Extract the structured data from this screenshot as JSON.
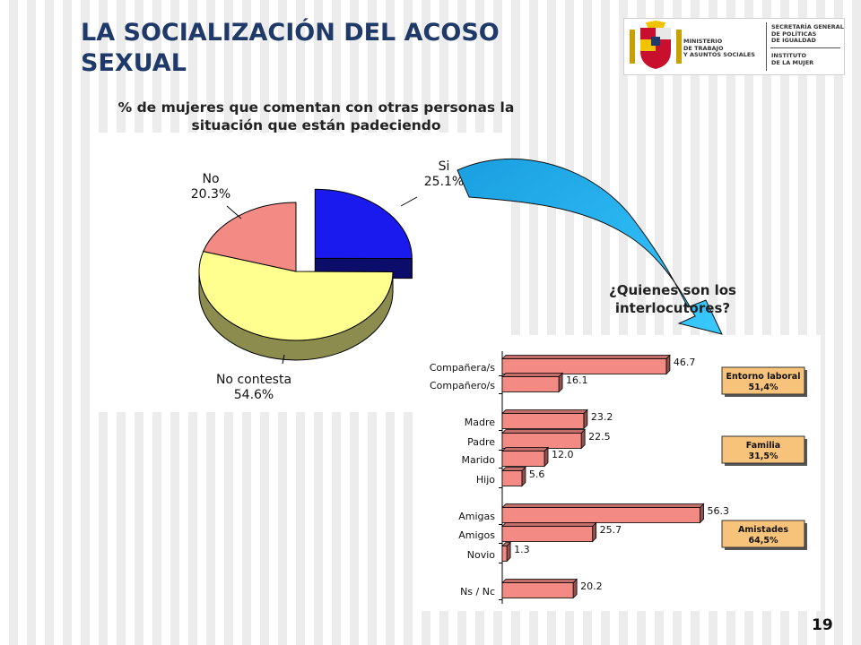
{
  "title": "LA SOCIALIZACIÓN DEL ACOSO SEXUAL",
  "logo": {
    "ministry_lines": [
      "MINISTERIO",
      "DE TRABAJO",
      "Y ASUNTOS SOCIALES"
    ],
    "secretariat_lines": [
      "SECRETARÍA GENERAL",
      "DE POLÍTICAS",
      "DE IGUALDAD"
    ],
    "institute_lines": [
      "INSTITUTO",
      "DE LA MUJER"
    ]
  },
  "question": "¿Quienes son los interlocutores?",
  "page_number": "19",
  "colors": {
    "title": "#1f3a68",
    "si": "#1a1aee",
    "no": "#f48a84",
    "no_contesta": "#ffff90",
    "bar": "#f48a84",
    "group_box": "#f7c27a",
    "arrow": "#1fb6ff"
  },
  "chart_data": [
    {
      "type": "pie",
      "title": "% de mujeres que comentan con otras personas la situación que están padeciendo",
      "slices": [
        {
          "label": "Si",
          "value": 25.1,
          "value_label": "25.1%"
        },
        {
          "label": "No contesta",
          "value": 54.6,
          "value_label": "54.6%"
        },
        {
          "label": "No",
          "value": 20.3,
          "value_label": "20.3%"
        }
      ],
      "exploded": "Si",
      "three_d": true
    },
    {
      "type": "bar",
      "orientation": "horizontal",
      "title": "¿Quienes son los interlocutores?",
      "categories": [
        "Compañera/s",
        "Compañero/s",
        "Madre",
        "Padre",
        "Marido",
        "Hijo",
        "Amigas",
        "Amigos",
        "Novio",
        "Ns / Nc"
      ],
      "values": [
        46.7,
        16.1,
        23.2,
        22.5,
        12.0,
        5.6,
        56.3,
        25.7,
        1.3,
        20.2
      ],
      "value_labels": [
        "46.7",
        "16.1",
        "23.2",
        "22.5",
        "12.0",
        "5.6",
        "56.3",
        "25.7",
        "1.3",
        "20.2"
      ],
      "xlim": [
        0,
        60
      ],
      "groups": [
        {
          "name": "Entorno laboral",
          "value": "51,4%",
          "members": [
            "Compañera/s",
            "Compañero/s"
          ]
        },
        {
          "name": "Familia",
          "value": "31,5%",
          "members": [
            "Madre",
            "Padre",
            "Marido",
            "Hijo"
          ]
        },
        {
          "name": "Amistades",
          "value": "64,5%",
          "members": [
            "Amigas",
            "Amigos",
            "Novio"
          ]
        }
      ]
    }
  ]
}
